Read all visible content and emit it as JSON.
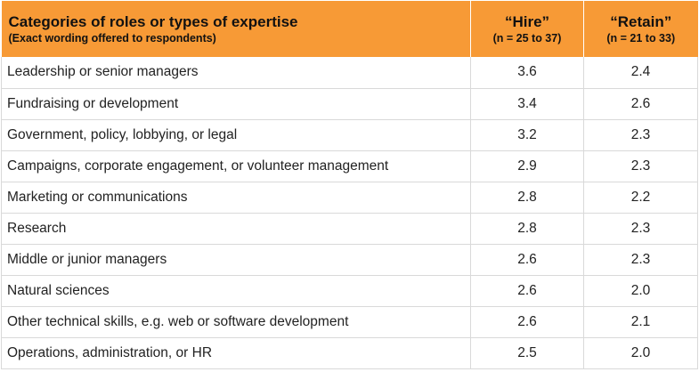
{
  "table": {
    "headers": {
      "category": {
        "title": "Categories of roles or types of expertise",
        "subtitle": "(Exact wording offered to respondents)"
      },
      "hire": {
        "title": "“Hire”",
        "subtitle": "(n = 25 to 37)"
      },
      "retain": {
        "title": "“Retain”",
        "subtitle": "(n = 21 to 33)"
      }
    },
    "rows": [
      {
        "category": "Leadership or senior managers",
        "hire": "3.6",
        "retain": "2.4"
      },
      {
        "category": "Fundraising or development",
        "hire": "3.4",
        "retain": "2.6"
      },
      {
        "category": "Government, policy, lobbying, or legal",
        "hire": "3.2",
        "retain": "2.3"
      },
      {
        "category": "Campaigns, corporate engagement, or volunteer management",
        "hire": "2.9",
        "retain": "2.3"
      },
      {
        "category": "Marketing or communications",
        "hire": "2.8",
        "retain": "2.2"
      },
      {
        "category": "Research",
        "hire": "2.8",
        "retain": "2.3"
      },
      {
        "category": "Middle or junior managers",
        "hire": "2.6",
        "retain": "2.3"
      },
      {
        "category": "Natural sciences",
        "hire": "2.6",
        "retain": "2.0"
      },
      {
        "category": "Other technical skills, e.g. web or software development",
        "hire": "2.6",
        "retain": "2.1"
      },
      {
        "category": "Operations, administration, or HR",
        "hire": "2.5",
        "retain": "2.0"
      }
    ]
  },
  "colors": {
    "header_background": "#f79a36",
    "grid_line": "#d9d9d9"
  }
}
